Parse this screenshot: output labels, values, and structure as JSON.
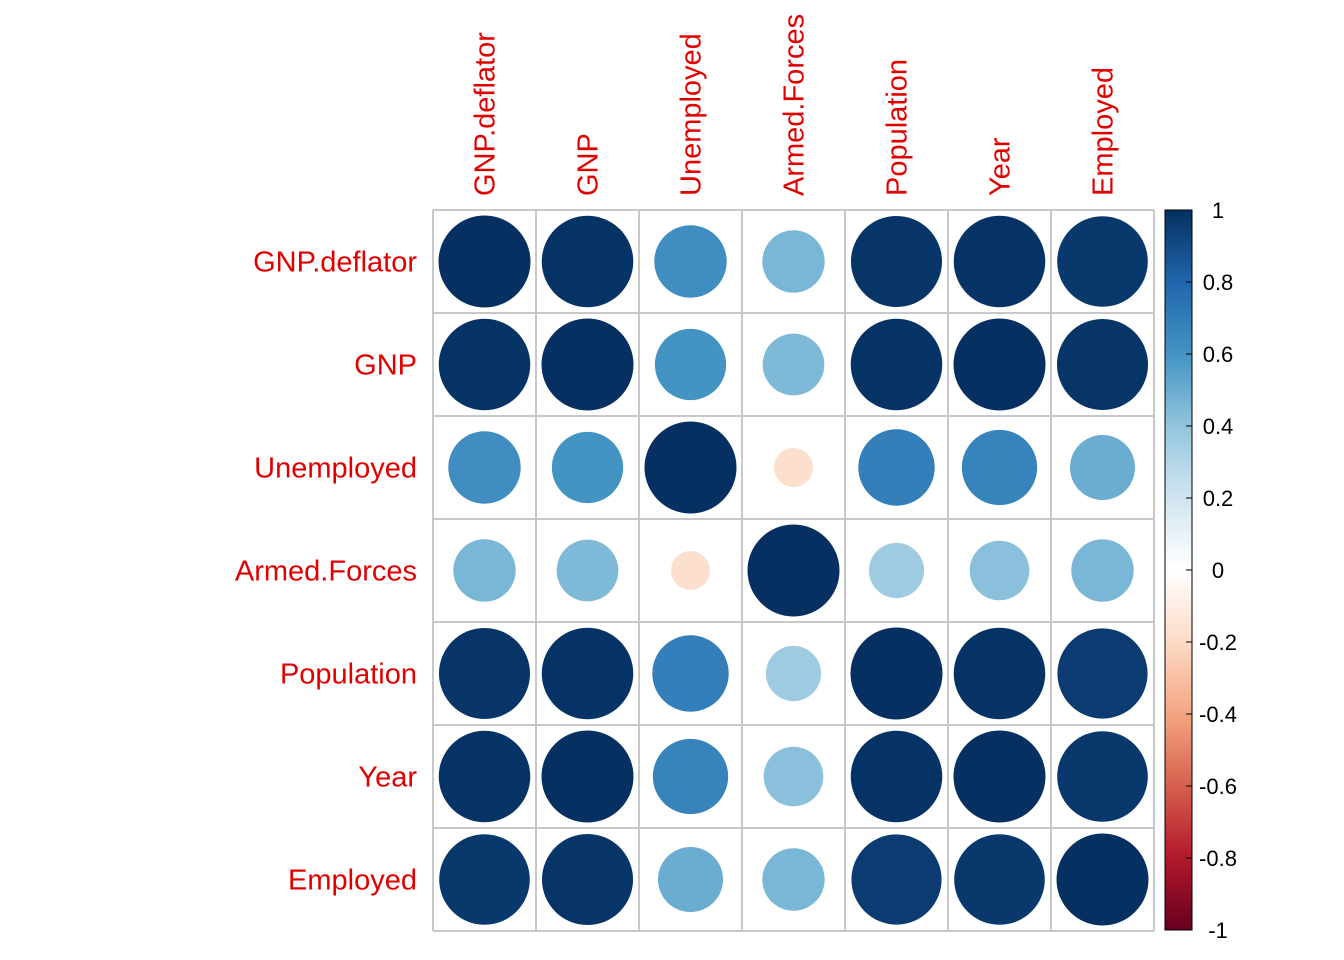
{
  "chart_data": {
    "type": "heatmap",
    "variables": [
      "GNP.deflator",
      "GNP",
      "Unemployed",
      "Armed.Forces",
      "Population",
      "Year",
      "Employed"
    ],
    "matrix": [
      [
        1.0,
        0.99,
        0.62,
        0.46,
        0.98,
        0.99,
        0.97
      ],
      [
        0.99,
        1.0,
        0.6,
        0.45,
        0.99,
        1.0,
        0.98
      ],
      [
        0.62,
        0.6,
        1.0,
        -0.18,
        0.69,
        0.67,
        0.5
      ],
      [
        0.46,
        0.45,
        -0.18,
        1.0,
        0.36,
        0.42,
        0.46
      ],
      [
        0.98,
        0.99,
        0.69,
        0.36,
        1.0,
        0.99,
        0.96
      ],
      [
        0.99,
        1.0,
        0.67,
        0.42,
        0.99,
        1.0,
        0.97
      ],
      [
        0.97,
        0.98,
        0.5,
        0.46,
        0.96,
        0.97,
        1.0
      ]
    ],
    "colorbar": {
      "range": [
        -1,
        1
      ],
      "ticks": [
        "1",
        "0.8",
        "0.6",
        "0.4",
        "0.2",
        "0",
        "-0.2",
        "-0.4",
        "-0.6",
        "-0.8",
        "-1"
      ],
      "stops": [
        "#67001F",
        "#B2182B",
        "#D6604D",
        "#F4A582",
        "#FDDBC7",
        "#FFFFFF",
        "#D1E5F0",
        "#92C5DE",
        "#4393C3",
        "#2166AC",
        "#053061"
      ]
    },
    "label_color": "#E00000",
    "grid_color": "#C8C8C8",
    "glyph": "circle",
    "legend_position": "right"
  }
}
